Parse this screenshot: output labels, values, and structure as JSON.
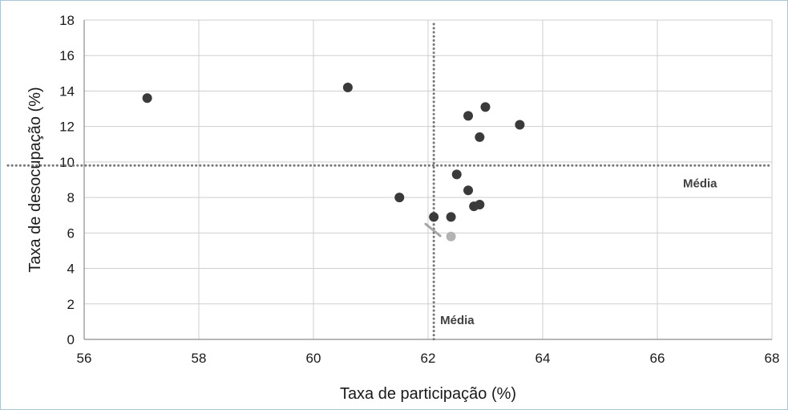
{
  "chart_data": {
    "type": "scatter",
    "title": "",
    "xlabel": "Taxa de participação (%)",
    "ylabel": "Taxa de desocupação (%)",
    "xlim": [
      56,
      68
    ],
    "ylim": [
      0,
      18
    ],
    "xticks": [
      56,
      58,
      60,
      62,
      64,
      66,
      68
    ],
    "yticks": [
      0,
      2,
      4,
      6,
      8,
      10,
      12,
      14,
      16,
      18
    ],
    "grid": true,
    "series": [
      {
        "color": "#3a3a3a",
        "points": [
          [
            57.1,
            13.6
          ],
          [
            60.6,
            14.2
          ],
          [
            61.5,
            8.0
          ],
          [
            62.1,
            6.9
          ],
          [
            62.4,
            6.9
          ],
          [
            62.5,
            9.3
          ],
          [
            62.7,
            12.6
          ],
          [
            62.7,
            8.4
          ],
          [
            62.8,
            7.5
          ],
          [
            62.9,
            11.4
          ],
          [
            62.9,
            7.6
          ],
          [
            63.0,
            13.1
          ],
          [
            63.6,
            12.1
          ]
        ]
      },
      {
        "color": "#b3b3b3",
        "points": [
          [
            62.4,
            5.8
          ]
        ]
      }
    ],
    "reference_lines": [
      {
        "orientation": "vertical",
        "value": 62.1,
        "label": "Média"
      },
      {
        "orientation": "horizontal",
        "value": 9.8,
        "label": "Média"
      }
    ],
    "annotations": [
      {
        "type": "pointer",
        "from": [
          62.1,
          5.2
        ],
        "to": [
          62.0,
          5.6
        ],
        "color": "#a6a6a6"
      }
    ]
  }
}
